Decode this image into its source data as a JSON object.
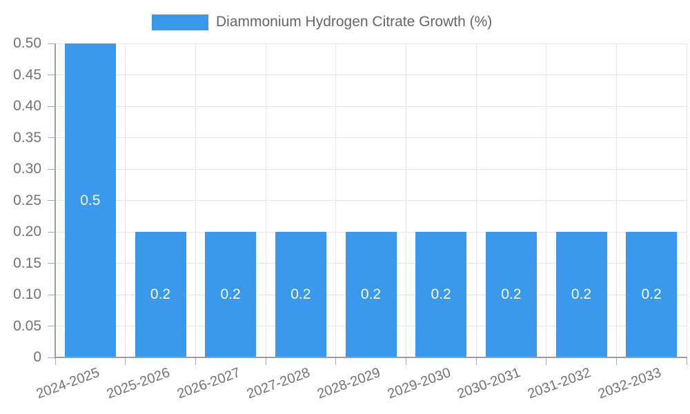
{
  "chart_data": {
    "type": "bar",
    "title": "",
    "legend": "Diammonium Hydrogen Citrate Growth (%)",
    "legend_position": "top",
    "categories": [
      "2024-2025",
      "2025-2026",
      "2026-2027",
      "2027-2028",
      "2028-2029",
      "2029-2030",
      "2030-2031",
      "2031-2032",
      "2032-2033"
    ],
    "values": [
      0.5,
      0.2,
      0.2,
      0.2,
      0.2,
      0.2,
      0.2,
      0.2,
      0.2
    ],
    "value_labels": [
      "0.5",
      "0.2",
      "0.2",
      "0.2",
      "0.2",
      "0.2",
      "0.2",
      "0.2",
      "0.2"
    ],
    "xlabel": "",
    "ylabel": "",
    "ylim": [
      0,
      0.5
    ],
    "ytick_step": 0.05,
    "ytick_labels": [
      "0",
      "0.05",
      "0.10",
      "0.15",
      "0.20",
      "0.25",
      "0.30",
      "0.35",
      "0.40",
      "0.45",
      "0.50"
    ],
    "grid": true,
    "colors": {
      "bar": "#3a99eb",
      "axis": "#9e9e9e",
      "grid": "#e6e6e6",
      "tick": "#ababab",
      "tick_label": "#737373",
      "legend_text": "#666666",
      "value_label": "#ffffff",
      "background": "#ffffff"
    }
  }
}
